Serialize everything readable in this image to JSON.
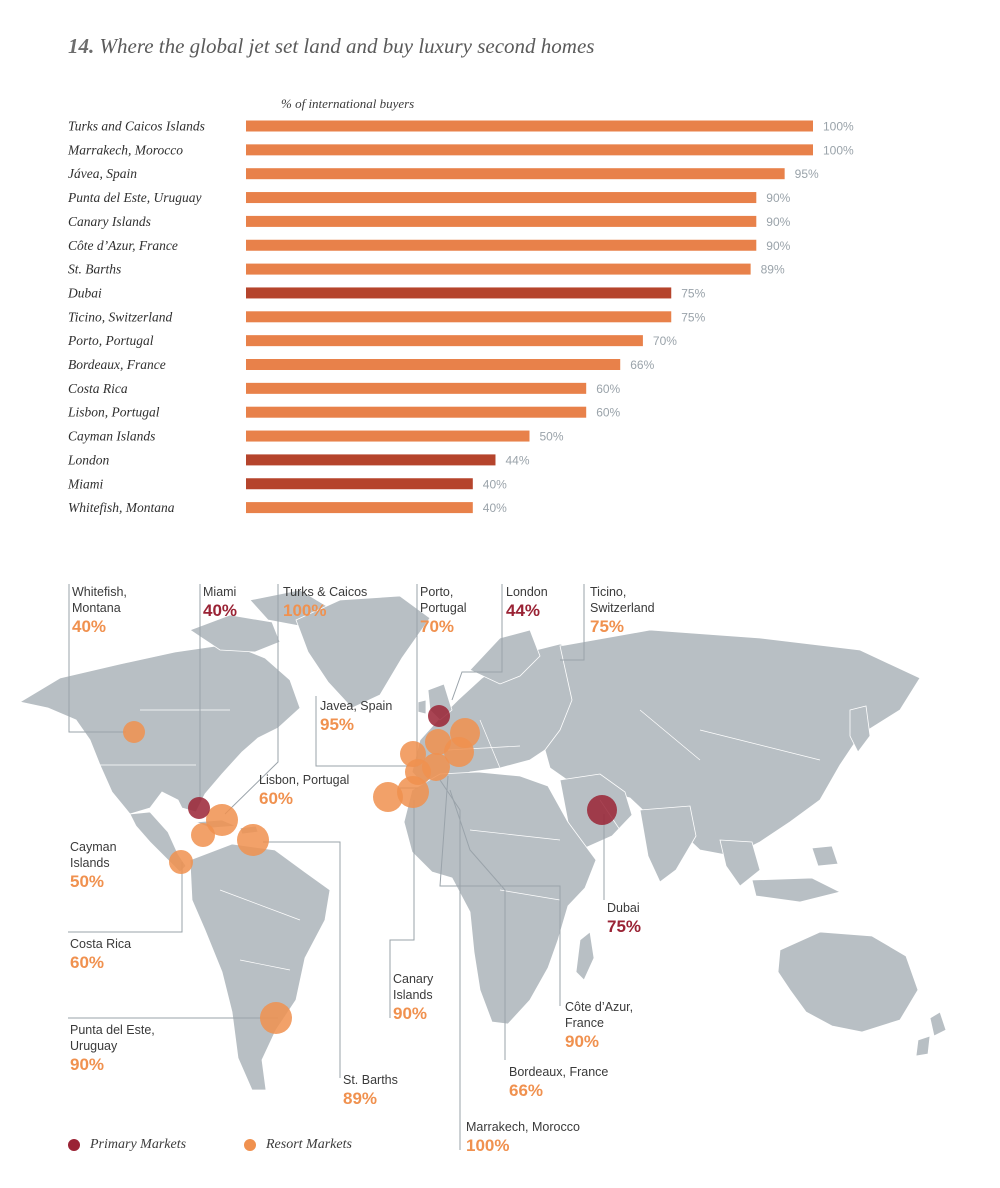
{
  "title": {
    "number": "14.",
    "text": "Where the global jet set land and buy luxury second homes"
  },
  "colors": {
    "resort": "#e8814a",
    "primary": "#b5442c",
    "primary_marker": "#9a2335",
    "resort_marker": "#f0914f",
    "value_label": "#9aa3aa",
    "map_land": "#b8bfc4",
    "leader_line": "#9aa3aa"
  },
  "chart_data": {
    "type": "bar",
    "orientation": "horizontal",
    "subtitle": "% of international buyers",
    "categories": [
      "Turks and Caicos Islands",
      "Marrakech, Morocco",
      "Jávea, Spain",
      "Punta del Este, Uruguay",
      "Canary Islands",
      "Côte d’Azur, France",
      "St. Barths",
      "Dubai",
      "Ticino, Switzerland",
      "Porto, Portugal",
      "Bordeaux, France",
      "Costa Rica",
      "Lisbon, Portugal",
      "Cayman Islands",
      "London",
      "Miami",
      "Whitefish, Montana"
    ],
    "values": [
      100,
      100,
      95,
      90,
      90,
      90,
      89,
      75,
      75,
      70,
      66,
      60,
      60,
      50,
      44,
      40,
      40
    ],
    "value_labels": [
      "100%",
      "100%",
      "95%",
      "90%",
      "90%",
      "90%",
      "89%",
      "75%",
      "75%",
      "70%",
      "66%",
      "60%",
      "60%",
      "50%",
      "44%",
      "40%",
      "40%"
    ],
    "market_type": [
      "resort",
      "resort",
      "resort",
      "resort",
      "resort",
      "resort",
      "resort",
      "primary",
      "resort",
      "resort",
      "resort",
      "resort",
      "resort",
      "resort",
      "primary",
      "primary",
      "resort"
    ],
    "xlim": [
      0,
      100
    ]
  },
  "map": {
    "callouts": [
      {
        "label": "Whitefish,\nMontana",
        "value": "40%",
        "type": "resort"
      },
      {
        "label": "Miami",
        "value": "40%",
        "type": "primary"
      },
      {
        "label": "Turks & Caicos",
        "value": "100%",
        "type": "resort"
      },
      {
        "label": "Porto,\nPortugal",
        "value": "70%",
        "type": "resort"
      },
      {
        "label": "London",
        "value": "44%",
        "type": "primary"
      },
      {
        "label": "Ticino,\nSwitzerland",
        "value": "75%",
        "type": "resort"
      },
      {
        "label": "Javea, Spain",
        "value": "95%",
        "type": "resort"
      },
      {
        "label": "Lisbon, Portugal",
        "value": "60%",
        "type": "resort"
      },
      {
        "label": "Cayman\nIslands",
        "value": "50%",
        "type": "resort"
      },
      {
        "label": "Costa Rica",
        "value": "60%",
        "type": "resort"
      },
      {
        "label": "Punta del Este,\nUruguay",
        "value": "90%",
        "type": "resort"
      },
      {
        "label": "St. Barths",
        "value": "89%",
        "type": "resort"
      },
      {
        "label": "Canary\nIslands",
        "value": "90%",
        "type": "resort"
      },
      {
        "label": "Marrakech, Morocco",
        "value": "100%",
        "type": "resort"
      },
      {
        "label": "Bordeaux, France",
        "value": "66%",
        "type": "resort"
      },
      {
        "label": "Côte d’Azur,\nFrance",
        "value": "90%",
        "type": "resort"
      },
      {
        "label": "Dubai",
        "value": "75%",
        "type": "primary"
      }
    ]
  },
  "legend": [
    {
      "label": "Primary Markets",
      "type": "primary"
    },
    {
      "label": "Resort Markets",
      "type": "resort"
    }
  ]
}
